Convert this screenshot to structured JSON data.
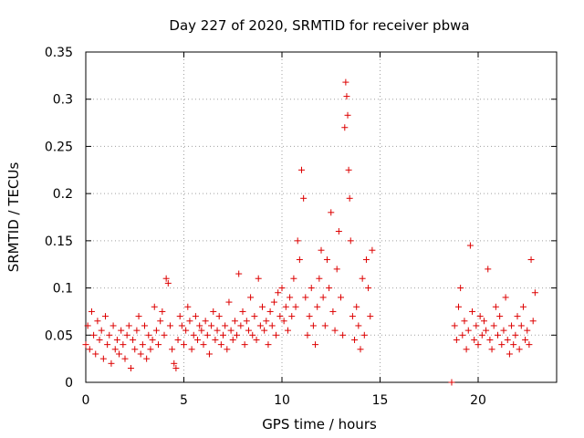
{
  "chart_data": {
    "type": "scatter",
    "title": "Day 227 of 2020, SRMTID for receiver pbwa",
    "xlabel": "GPS time / hours",
    "ylabel": "SRMTID / TECUs",
    "xlim": [
      0,
      24
    ],
    "ylim": [
      0,
      0.35
    ],
    "xticks": [
      0,
      5,
      10,
      15,
      20
    ],
    "xtick_labels": [
      "0",
      "5",
      "10",
      "15",
      "20"
    ],
    "yticks": [
      0,
      0.05,
      0.1,
      0.15,
      0.2,
      0.25,
      0.3,
      0.35
    ],
    "ytick_labels": [
      "0",
      "0.05",
      "0.1",
      "0.15",
      "0.2",
      "0.25",
      "0.3",
      "0.35"
    ],
    "grid": true,
    "marker": "+",
    "series": [
      {
        "name": "SRMTID",
        "color": "#dd0000",
        "points": [
          [
            0.0,
            0.04
          ],
          [
            0.1,
            0.06
          ],
          [
            0.2,
            0.035
          ],
          [
            0.3,
            0.075
          ],
          [
            0.4,
            0.05
          ],
          [
            0.5,
            0.03
          ],
          [
            0.6,
            0.065
          ],
          [
            0.7,
            0.045
          ],
          [
            0.8,
            0.055
          ],
          [
            0.9,
            0.025
          ],
          [
            1.0,
            0.07
          ],
          [
            1.1,
            0.04
          ],
          [
            1.2,
            0.05
          ],
          [
            1.3,
            0.02
          ],
          [
            1.4,
            0.06
          ],
          [
            1.5,
            0.035
          ],
          [
            1.6,
            0.045
          ],
          [
            1.7,
            0.03
          ],
          [
            1.8,
            0.055
          ],
          [
            1.9,
            0.04
          ],
          [
            2.0,
            0.025
          ],
          [
            2.1,
            0.05
          ],
          [
            2.2,
            0.06
          ],
          [
            2.3,
            0.015
          ],
          [
            2.4,
            0.045
          ],
          [
            2.5,
            0.035
          ],
          [
            2.6,
            0.055
          ],
          [
            2.7,
            0.07
          ],
          [
            2.8,
            0.03
          ],
          [
            2.9,
            0.04
          ],
          [
            3.0,
            0.06
          ],
          [
            3.1,
            0.025
          ],
          [
            3.2,
            0.05
          ],
          [
            3.3,
            0.035
          ],
          [
            3.4,
            0.045
          ],
          [
            3.5,
            0.08
          ],
          [
            3.6,
            0.055
          ],
          [
            3.7,
            0.04
          ],
          [
            3.8,
            0.065
          ],
          [
            3.9,
            0.075
          ],
          [
            4.0,
            0.05
          ],
          [
            4.1,
            0.11
          ],
          [
            4.2,
            0.105
          ],
          [
            4.3,
            0.06
          ],
          [
            4.4,
            0.035
          ],
          [
            4.5,
            0.02
          ],
          [
            4.6,
            0.015
          ],
          [
            4.7,
            0.045
          ],
          [
            4.8,
            0.07
          ],
          [
            4.9,
            0.06
          ],
          [
            5.0,
            0.04
          ],
          [
            5.1,
            0.055
          ],
          [
            5.2,
            0.08
          ],
          [
            5.3,
            0.065
          ],
          [
            5.4,
            0.035
          ],
          [
            5.5,
            0.05
          ],
          [
            5.6,
            0.07
          ],
          [
            5.7,
            0.045
          ],
          [
            5.8,
            0.06
          ],
          [
            5.9,
            0.055
          ],
          [
            6.0,
            0.04
          ],
          [
            6.1,
            0.065
          ],
          [
            6.2,
            0.05
          ],
          [
            6.3,
            0.03
          ],
          [
            6.4,
            0.06
          ],
          [
            6.5,
            0.075
          ],
          [
            6.6,
            0.045
          ],
          [
            6.7,
            0.055
          ],
          [
            6.8,
            0.07
          ],
          [
            6.9,
            0.04
          ],
          [
            7.0,
            0.05
          ],
          [
            7.1,
            0.06
          ],
          [
            7.2,
            0.035
          ],
          [
            7.3,
            0.085
          ],
          [
            7.4,
            0.055
          ],
          [
            7.5,
            0.045
          ],
          [
            7.6,
            0.065
          ],
          [
            7.7,
            0.05
          ],
          [
            7.8,
            0.115
          ],
          [
            7.9,
            0.06
          ],
          [
            8.0,
            0.075
          ],
          [
            8.1,
            0.04
          ],
          [
            8.2,
            0.065
          ],
          [
            8.3,
            0.055
          ],
          [
            8.4,
            0.09
          ],
          [
            8.5,
            0.05
          ],
          [
            8.6,
            0.07
          ],
          [
            8.7,
            0.045
          ],
          [
            8.8,
            0.11
          ],
          [
            8.9,
            0.06
          ],
          [
            9.0,
            0.08
          ],
          [
            9.1,
            0.055
          ],
          [
            9.2,
            0.065
          ],
          [
            9.3,
            0.04
          ],
          [
            9.4,
            0.075
          ],
          [
            9.5,
            0.06
          ],
          [
            9.6,
            0.085
          ],
          [
            9.7,
            0.05
          ],
          [
            9.8,
            0.095
          ],
          [
            9.9,
            0.07
          ],
          [
            10.0,
            0.1
          ],
          [
            10.1,
            0.065
          ],
          [
            10.2,
            0.08
          ],
          [
            10.3,
            0.055
          ],
          [
            10.4,
            0.09
          ],
          [
            10.5,
            0.07
          ],
          [
            10.6,
            0.11
          ],
          [
            10.7,
            0.08
          ],
          [
            10.8,
            0.15
          ],
          [
            10.9,
            0.13
          ],
          [
            11.0,
            0.225
          ],
          [
            11.1,
            0.195
          ],
          [
            11.2,
            0.09
          ],
          [
            11.3,
            0.05
          ],
          [
            11.4,
            0.07
          ],
          [
            11.5,
            0.1
          ],
          [
            11.6,
            0.06
          ],
          [
            11.7,
            0.04
          ],
          [
            11.8,
            0.08
          ],
          [
            11.9,
            0.11
          ],
          [
            12.0,
            0.14
          ],
          [
            12.1,
            0.09
          ],
          [
            12.2,
            0.06
          ],
          [
            12.3,
            0.13
          ],
          [
            12.4,
            0.1
          ],
          [
            12.5,
            0.18
          ],
          [
            12.6,
            0.075
          ],
          [
            12.7,
            0.055
          ],
          [
            12.8,
            0.12
          ],
          [
            12.9,
            0.16
          ],
          [
            13.0,
            0.09
          ],
          [
            13.1,
            0.05
          ],
          [
            13.2,
            0.27
          ],
          [
            13.25,
            0.318
          ],
          [
            13.3,
            0.303
          ],
          [
            13.35,
            0.283
          ],
          [
            13.4,
            0.225
          ],
          [
            13.45,
            0.195
          ],
          [
            13.5,
            0.15
          ],
          [
            13.6,
            0.07
          ],
          [
            13.7,
            0.045
          ],
          [
            13.8,
            0.08
          ],
          [
            13.9,
            0.06
          ],
          [
            14.0,
            0.035
          ],
          [
            14.1,
            0.11
          ],
          [
            14.2,
            0.05
          ],
          [
            14.3,
            0.13
          ],
          [
            14.4,
            0.1
          ],
          [
            14.5,
            0.07
          ],
          [
            14.6,
            0.14
          ],
          [
            18.65,
            0.0
          ],
          [
            18.8,
            0.06
          ],
          [
            18.9,
            0.045
          ],
          [
            19.0,
            0.08
          ],
          [
            19.1,
            0.1
          ],
          [
            19.2,
            0.05
          ],
          [
            19.3,
            0.065
          ],
          [
            19.4,
            0.035
          ],
          [
            19.5,
            0.055
          ],
          [
            19.6,
            0.145
          ],
          [
            19.7,
            0.075
          ],
          [
            19.8,
            0.045
          ],
          [
            19.9,
            0.06
          ],
          [
            20.0,
            0.04
          ],
          [
            20.1,
            0.07
          ],
          [
            20.2,
            0.05
          ],
          [
            20.3,
            0.065
          ],
          [
            20.4,
            0.055
          ],
          [
            20.5,
            0.12
          ],
          [
            20.6,
            0.045
          ],
          [
            20.7,
            0.035
          ],
          [
            20.8,
            0.06
          ],
          [
            20.9,
            0.08
          ],
          [
            21.0,
            0.05
          ],
          [
            21.1,
            0.07
          ],
          [
            21.2,
            0.04
          ],
          [
            21.3,
            0.055
          ],
          [
            21.4,
            0.09
          ],
          [
            21.5,
            0.045
          ],
          [
            21.6,
            0.03
          ],
          [
            21.7,
            0.06
          ],
          [
            21.8,
            0.04
          ],
          [
            21.9,
            0.05
          ],
          [
            22.0,
            0.07
          ],
          [
            22.1,
            0.035
          ],
          [
            22.2,
            0.06
          ],
          [
            22.3,
            0.08
          ],
          [
            22.4,
            0.045
          ],
          [
            22.5,
            0.055
          ],
          [
            22.6,
            0.04
          ],
          [
            22.7,
            0.13
          ],
          [
            22.8,
            0.065
          ],
          [
            22.9,
            0.095
          ]
        ]
      }
    ]
  }
}
